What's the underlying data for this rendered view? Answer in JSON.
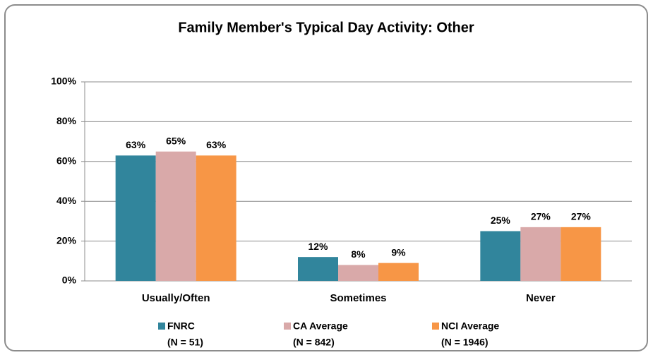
{
  "chart_data": {
    "type": "bar",
    "title": "Family Member's Typical Day Activity: Other",
    "categories": [
      "Usually/Often",
      "Sometimes",
      "Never"
    ],
    "series": [
      {
        "name": "FNRC",
        "note": "(N = 51)",
        "color": "#31859c",
        "values": [
          63,
          12,
          25
        ],
        "value_labels": [
          "63%",
          "12%",
          "25%"
        ]
      },
      {
        "name": "CA Average",
        "note": "(N = 842)",
        "color": "#d9a9a9",
        "values": [
          65,
          8,
          27
        ],
        "value_labels": [
          "65%",
          "8%",
          "27%"
        ]
      },
      {
        "name": "NCI Average",
        "note": "(N = 1946)",
        "color": "#f79646",
        "values": [
          63,
          9,
          27
        ],
        "value_labels": [
          "63%",
          "9%",
          "27%"
        ]
      }
    ],
    "ylim": [
      0,
      100
    ],
    "yticks": [
      {
        "value": 0,
        "label": "0%"
      },
      {
        "value": 20,
        "label": "20%"
      },
      {
        "value": 40,
        "label": "40%"
      },
      {
        "value": 60,
        "label": "60%"
      },
      {
        "value": 80,
        "label": "80%"
      },
      {
        "value": 100,
        "label": "100%"
      }
    ],
    "grid": true,
    "legend": "bottom"
  }
}
